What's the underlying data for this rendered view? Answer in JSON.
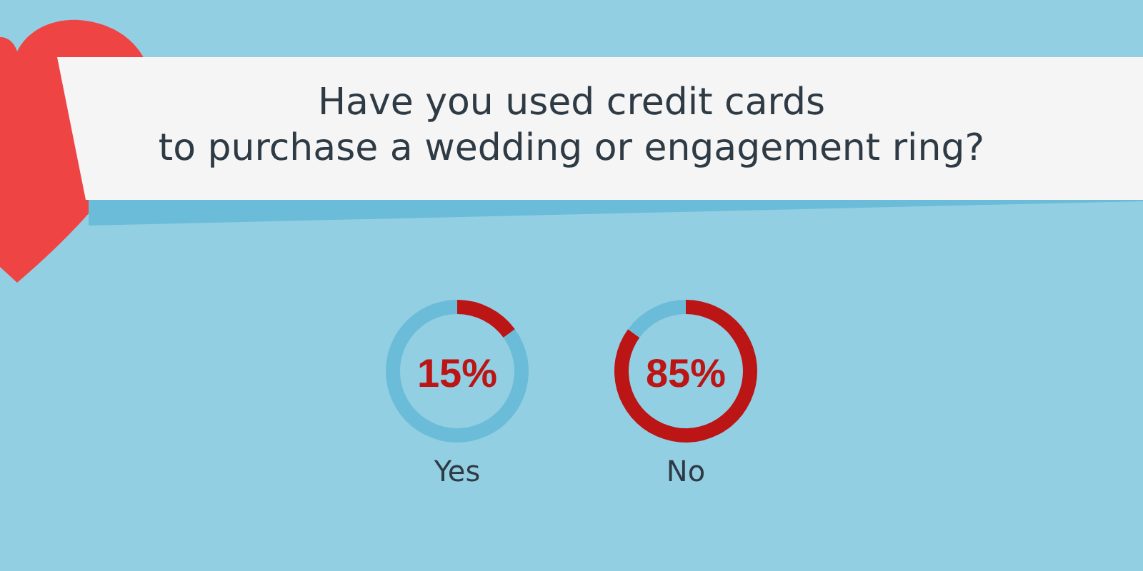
{
  "chart_data": [
    {
      "type": "other",
      "title": "Have you used credit cards\nto purchase a wedding or engagement ring?"
    },
    {
      "type": "donut",
      "title": "Yes",
      "categories": [
        null,
        null
      ],
      "values": [
        15,
        85
      ],
      "colors": [
        "#bb1515",
        "#6bbcd8"
      ],
      "annotations": [
        "15%"
      ]
    },
    {
      "type": "donut",
      "title": "No",
      "categories": [
        null,
        null
      ],
      "values": [
        85,
        15
      ],
      "colors": [
        "#bb1515",
        "#6bbcd8"
      ],
      "annotations": [
        "85%"
      ]
    }
  ]
}
